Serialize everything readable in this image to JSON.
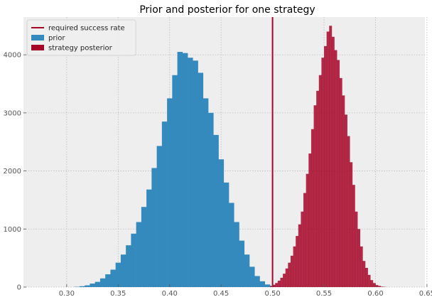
{
  "chart_data": {
    "type": "bar",
    "title": "Prior and posterior for one strategy",
    "xlabel": "",
    "ylabel": "",
    "xlim": [
      0.258,
      0.648
    ],
    "ylim": [
      0,
      4650
    ],
    "x_ticks": [
      0.3,
      0.35,
      0.4,
      0.45,
      0.5,
      0.55,
      0.6,
      0.65
    ],
    "x_tick_labels": [
      "0.30",
      "0.35",
      "0.40",
      "0.45",
      "0.50",
      "0.55",
      "0.60",
      "0.65"
    ],
    "y_ticks": [
      0,
      1000,
      2000,
      3000,
      4000
    ],
    "y_tick_labels": [
      "0",
      "1000",
      "2000",
      "3000",
      "4000"
    ],
    "grid": true,
    "legend_position": "top-left",
    "legend": [
      {
        "label": "required success rate",
        "kind": "line",
        "color": "#A60628"
      },
      {
        "label": "prior",
        "kind": "patch",
        "color": "#348ABD"
      },
      {
        "label": "strategy posterior",
        "kind": "patch",
        "color": "#A60628"
      }
    ],
    "colors": {
      "prior": "#348ABD",
      "posterior": "#A60628",
      "threshold": "#A60628",
      "background": "#EEEEEE",
      "grid": "#BBBBBB"
    },
    "threshold": 0.5,
    "series": [
      {
        "name": "prior",
        "bin_start": 0.3075,
        "bin_width": 0.005,
        "values": [
          5,
          15,
          30,
          60,
          90,
          150,
          220,
          300,
          420,
          560,
          720,
          920,
          1120,
          1380,
          1680,
          2050,
          2430,
          2850,
          3250,
          3650,
          4050,
          4030,
          3950,
          3900,
          3690,
          3250,
          3000,
          2620,
          2200,
          1800,
          1450,
          1120,
          800,
          560,
          350,
          190,
          100,
          45,
          15,
          5
        ]
      },
      {
        "name": "strategy posterior",
        "bin_start": 0.4975,
        "bin_width": 0.0025,
        "values": [
          20,
          40,
          70,
          110,
          160,
          230,
          320,
          420,
          540,
          700,
          880,
          1080,
          1300,
          1620,
          1950,
          2300,
          2720,
          3130,
          3380,
          3650,
          3950,
          4150,
          4400,
          4500,
          4310,
          4080,
          3910,
          3600,
          3300,
          2970,
          2600,
          2150,
          1760,
          1300,
          1000,
          700,
          450,
          330,
          210,
          120,
          70,
          35,
          20,
          8,
          4
        ]
      }
    ]
  }
}
